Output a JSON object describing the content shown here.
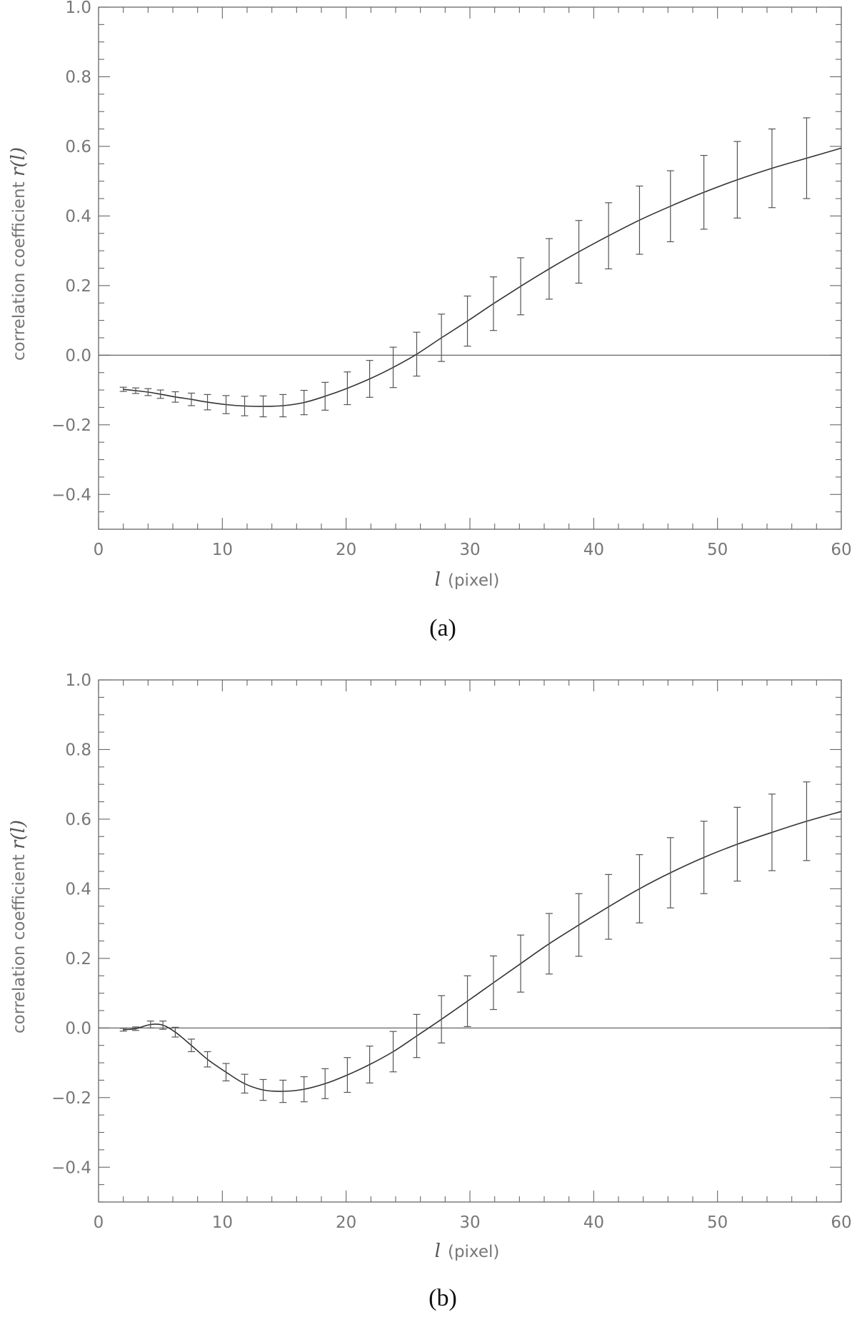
{
  "chart_data": [
    {
      "type": "line",
      "caption": "(a)",
      "xlabel_symbol": "l",
      "xlabel_unit": "(pixel)",
      "ylabel_text": "correlation coefficient",
      "ylabel_symbol": "r(l)",
      "xlim": [
        0,
        60
      ],
      "ylim": [
        -0.5,
        1.0
      ],
      "xticks": [
        0,
        10,
        20,
        30,
        40,
        50,
        60
      ],
      "yticks": [
        -0.4,
        -0.2,
        0.0,
        0.2,
        0.4,
        0.6,
        0.8,
        1.0
      ],
      "ytick_labels": [
        "−0.4",
        "−0.2",
        "0.0",
        "0.2",
        "0.4",
        "0.6",
        "0.8",
        "1.0"
      ],
      "reference_line_y": 0.0,
      "series": [
        {
          "x": [
            2.0,
            3.0,
            4.0,
            5.0,
            6.2,
            7.5,
            8.8,
            10.3,
            11.8,
            13.3,
            14.9,
            16.6,
            18.3,
            20.1,
            21.9,
            23.8,
            25.7,
            27.7,
            29.8,
            31.9,
            34.1,
            36.4,
            38.8,
            41.2,
            43.7,
            46.2,
            48.9,
            51.6,
            54.4,
            57.2,
            60.0
          ],
          "y": [
            -0.098,
            -0.102,
            -0.106,
            -0.112,
            -0.12,
            -0.127,
            -0.135,
            -0.142,
            -0.146,
            -0.147,
            -0.145,
            -0.136,
            -0.118,
            -0.095,
            -0.068,
            -0.035,
            0.003,
            0.05,
            0.098,
            0.148,
            0.198,
            0.248,
            0.297,
            0.343,
            0.388,
            0.428,
            0.468,
            0.504,
            0.537,
            0.566,
            0.595
          ],
          "err": [
            0.006,
            0.008,
            0.01,
            0.012,
            0.015,
            0.018,
            0.022,
            0.026,
            0.028,
            0.03,
            0.032,
            0.035,
            0.04,
            0.047,
            0.053,
            0.058,
            0.063,
            0.068,
            0.072,
            0.077,
            0.082,
            0.087,
            0.09,
            0.095,
            0.098,
            0.102,
            0.106,
            0.11,
            0.113,
            0.116,
            0.118
          ]
        }
      ],
      "errorbar_x_max": 57.2
    },
    {
      "type": "line",
      "caption": "(b)",
      "xlabel_symbol": "l",
      "xlabel_unit": "(pixel)",
      "ylabel_text": "correlation coefficient",
      "ylabel_symbol": "r(l)",
      "xlim": [
        0,
        60
      ],
      "ylim": [
        -0.5,
        1.0
      ],
      "xticks": [
        0,
        10,
        20,
        30,
        40,
        50,
        60
      ],
      "yticks": [
        -0.4,
        -0.2,
        0.0,
        0.2,
        0.4,
        0.6,
        0.8,
        1.0
      ],
      "ytick_labels": [
        "−0.4",
        "−0.2",
        "0.0",
        "0.2",
        "0.4",
        "0.6",
        "0.8",
        "1.0"
      ],
      "reference_line_y": 0.0,
      "series": [
        {
          "x": [
            2.0,
            3.0,
            4.2,
            5.2,
            6.2,
            7.5,
            8.8,
            10.3,
            11.8,
            13.3,
            14.9,
            16.6,
            18.3,
            20.1,
            21.9,
            23.8,
            25.7,
            27.7,
            29.8,
            31.9,
            34.1,
            36.4,
            38.8,
            41.2,
            43.7,
            46.2,
            48.9,
            51.6,
            54.4,
            57.2,
            60.0
          ],
          "y": [
            -0.005,
            -0.002,
            0.01,
            0.008,
            -0.012,
            -0.05,
            -0.09,
            -0.127,
            -0.16,
            -0.178,
            -0.182,
            -0.176,
            -0.16,
            -0.135,
            -0.105,
            -0.068,
            -0.023,
            0.025,
            0.077,
            0.13,
            0.185,
            0.242,
            0.296,
            0.348,
            0.4,
            0.446,
            0.49,
            0.528,
            0.562,
            0.594,
            0.622
          ],
          "err": [
            0.004,
            0.005,
            0.01,
            0.012,
            0.014,
            0.018,
            0.022,
            0.025,
            0.027,
            0.03,
            0.032,
            0.036,
            0.043,
            0.05,
            0.053,
            0.058,
            0.062,
            0.068,
            0.073,
            0.077,
            0.082,
            0.087,
            0.09,
            0.093,
            0.098,
            0.101,
            0.104,
            0.106,
            0.11,
            0.113,
            0.115
          ]
        }
      ],
      "errorbar_x_max": 57.2
    }
  ]
}
